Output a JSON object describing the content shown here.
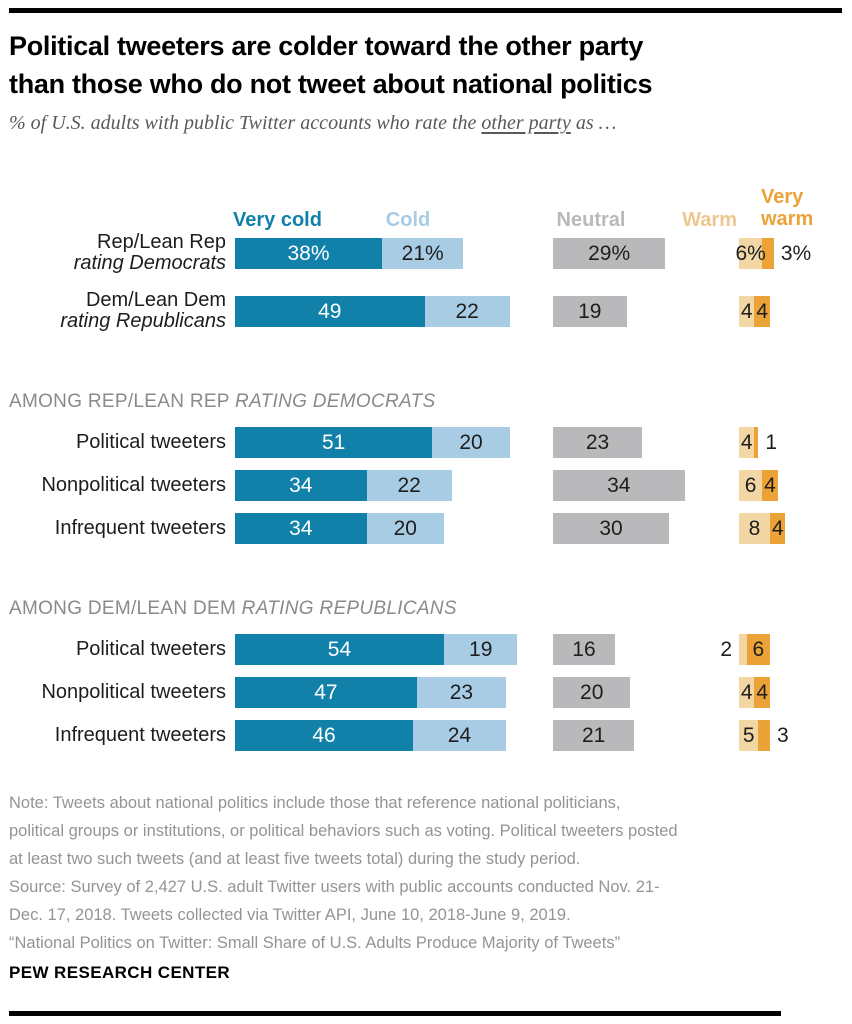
{
  "header": {
    "title": "Political tweeters are colder toward the other party\nthan those who do not tweet about national politics",
    "subtitle_prefix": "% of U.S. adults with public Twitter accounts who rate the ",
    "subtitle_underlined": "other party",
    "subtitle_suffix": " as …"
  },
  "legend": {
    "very_cold": "Very cold",
    "cold": "Cold",
    "neutral": "Neutral",
    "warm": "Warm",
    "very_warm_line1": "Very",
    "very_warm_line2": "warm"
  },
  "chart_data": {
    "type": "bar",
    "orientation": "horizontal-grouped-stacked",
    "unit": "%",
    "legend_entries": [
      "Very cold",
      "Cold",
      "Neutral",
      "Warm",
      "Very warm"
    ],
    "colors": {
      "very_cold": "#1181aa",
      "cold": "#a7cce3",
      "neutral": "#b9b9bb",
      "warm": "#f2d6a4",
      "very_warm": "#eba236"
    },
    "groups": [
      {
        "header": "",
        "header_italic": "",
        "rows": [
          {
            "label": "Rep/Lean Rep",
            "label_italic": "rating Democrats",
            "values": [
              38,
              21,
              29,
              6,
              3
            ],
            "display": [
              "38%",
              "21%",
              "29%",
              "6%",
              "3%"
            ],
            "warm_label_pos": "inside",
            "very_warm_label_pos": "outside-right"
          },
          {
            "label": "Dem/Lean Dem",
            "label_italic": "rating Republicans",
            "values": [
              49,
              22,
              19,
              4,
              4
            ],
            "display": [
              "49",
              "22",
              "19",
              "4",
              "4"
            ],
            "warm_label_pos": "inside",
            "very_warm_label_pos": "inside"
          }
        ]
      },
      {
        "header": "AMONG REP/LEAN REP ",
        "header_italic": "RATING DEMOCRATS",
        "rows": [
          {
            "label": "Political tweeters",
            "label_italic": "",
            "values": [
              51,
              20,
              23,
              4,
              1
            ],
            "display": [
              "51",
              "20",
              "23",
              "4",
              "1"
            ],
            "warm_label_pos": "inside",
            "very_warm_label_pos": "outside-right"
          },
          {
            "label": "Nonpolitical tweeters",
            "label_italic": "",
            "values": [
              34,
              22,
              34,
              6,
              4
            ],
            "display": [
              "34",
              "22",
              "34",
              "6",
              "4"
            ],
            "warm_label_pos": "inside",
            "very_warm_label_pos": "inside"
          },
          {
            "label": "Infrequent tweeters",
            "label_italic": "",
            "values": [
              34,
              20,
              30,
              8,
              4
            ],
            "display": [
              "34",
              "20",
              "30",
              "8",
              "4"
            ],
            "warm_label_pos": "inside",
            "very_warm_label_pos": "inside"
          }
        ]
      },
      {
        "header": "AMONG DEM/LEAN DEM ",
        "header_italic": "RATING REPUBLICANS",
        "rows": [
          {
            "label": "Political tweeters",
            "label_italic": "",
            "values": [
              54,
              19,
              16,
              2,
              6
            ],
            "display": [
              "54",
              "19",
              "16",
              "2",
              "6"
            ],
            "warm_label_pos": "outside-left",
            "very_warm_label_pos": "inside"
          },
          {
            "label": "Nonpolitical tweeters",
            "label_italic": "",
            "values": [
              47,
              23,
              20,
              4,
              4
            ],
            "display": [
              "47",
              "23",
              "20",
              "4",
              "4"
            ],
            "warm_label_pos": "inside",
            "very_warm_label_pos": "inside"
          },
          {
            "label": "Infrequent tweeters",
            "label_italic": "",
            "values": [
              46,
              24,
              21,
              5,
              3
            ],
            "display": [
              "46",
              "24",
              "21",
              "5",
              "3"
            ],
            "warm_label_pos": "inside",
            "very_warm_label_pos": "outside-right"
          }
        ]
      }
    ]
  },
  "footer": {
    "note": "Note: Tweets about national politics include those that reference national politicians,\npolitical groups or institutions, or political behaviors such as voting. Political tweeters posted\nat least two such tweets (and at least five tweets total) during the study period.\nSource: Survey of 2,427 U.S. adult Twitter users with public accounts conducted Nov. 21-\nDec. 17, 2018. Tweets collected via Twitter API, June 10, 2018-June 9, 2019.\n“National Politics on Twitter: Small Share of U.S. Adults Produce Majority of Tweets”",
    "brand": "PEW RESEARCH CENTER"
  }
}
